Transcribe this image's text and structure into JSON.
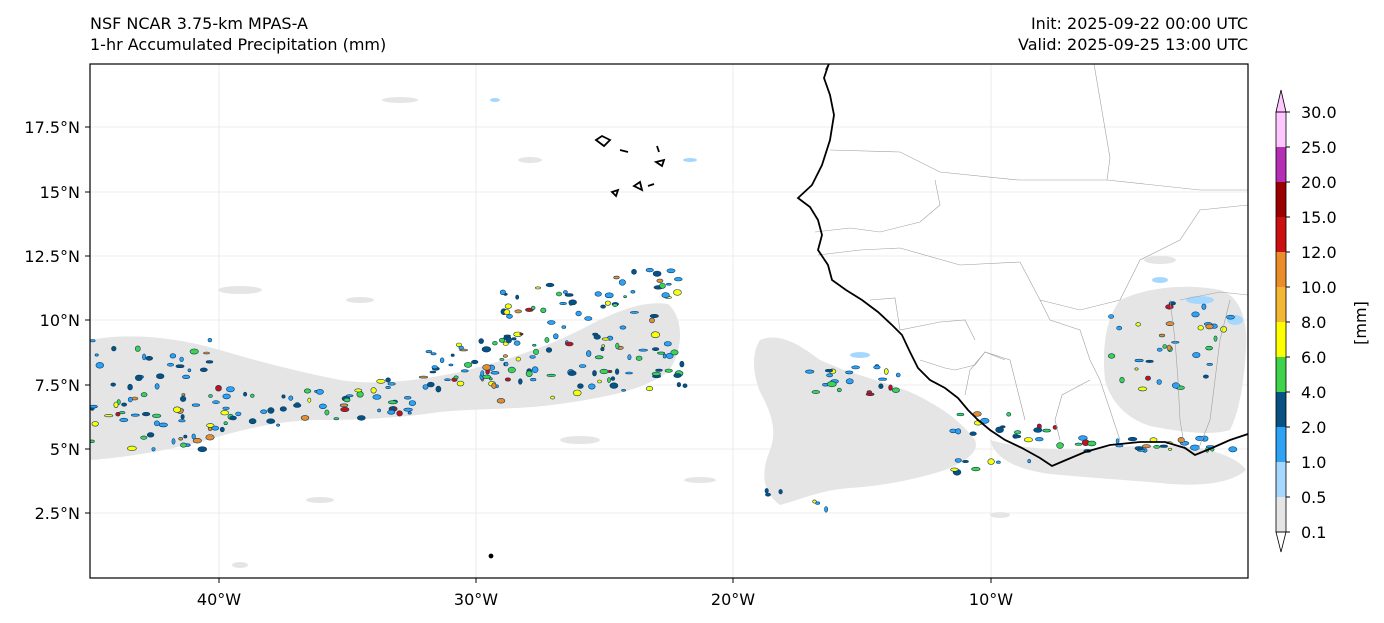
{
  "header": {
    "title_line1": "NSF NCAR 3.75-km MPAS-A",
    "title_line2": "1-hr Accumulated Precipitation (mm)",
    "init": "Init: 2025-09-22 00:00 UTC",
    "valid": "Valid: 2025-09-25 13:00 UTC"
  },
  "map": {
    "lon_range": [
      -45,
      0
    ],
    "lat_range": [
      0,
      20
    ],
    "lat_ticks": [
      {
        "value": 2.5,
        "label": "2.5°N"
      },
      {
        "value": 5,
        "label": "5°N"
      },
      {
        "value": 7.5,
        "label": "7.5°N"
      },
      {
        "value": 10,
        "label": "10°N"
      },
      {
        "value": 12.5,
        "label": "12.5°N"
      },
      {
        "value": 15,
        "label": "15°N"
      },
      {
        "value": 17.5,
        "label": "17.5°N"
      }
    ],
    "lon_ticks": [
      {
        "value": -40,
        "label": "40°W"
      },
      {
        "value": -30,
        "label": "30°W"
      },
      {
        "value": -20,
        "label": "20°W"
      },
      {
        "value": -10,
        "label": "10°W"
      }
    ]
  },
  "colorbar": {
    "unit_label": "[mm]",
    "levels": [
      "0.1",
      "0.5",
      "1.0",
      "2.0",
      "4.0",
      "6.0",
      "8.0",
      "10.0",
      "12.0",
      "15.0",
      "20.0",
      "25.0",
      "30.0"
    ],
    "colors": [
      "#e5e5e5",
      "#a6d8ff",
      "#2ea2f5",
      "#075183",
      "#3fd24b",
      "#ffff00",
      "#f4b733",
      "#ea8c2a",
      "#cc0f10",
      "#9b0000",
      "#b42fb4",
      "#ffc7ff"
    ],
    "under_color": "#ffffff",
    "over_color": "#ffc7ff"
  }
}
